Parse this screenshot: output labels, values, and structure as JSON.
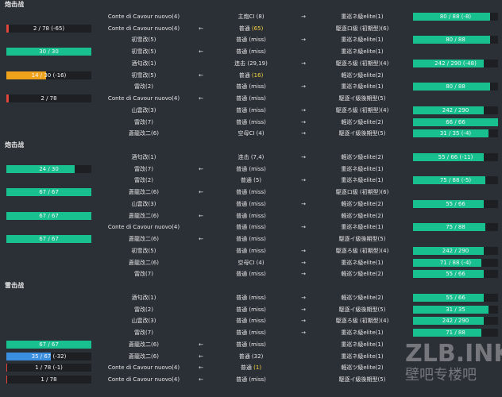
{
  "watermark": {
    "brand": "ZLB.INK",
    "sub": "壁吧专楼吧"
  },
  "sections": [
    {
      "title": "炮击战",
      "rows": [
        {
          "attacker": "Conte di Cavour nuovo(4)",
          "dir": "→",
          "attack": "主炮CI",
          "hit": "(8)",
          "target": "重巡ネ級elite(1)",
          "right": {
            "now": 80,
            "max": 88,
            "label": "80 / 88 (-8)",
            "color": "#17c08e"
          }
        },
        {
          "left": {
            "now": 2,
            "max": 78,
            "label": "2 / 78 (-65)",
            "color": "#e0453a"
          },
          "attacker": "Conte di Cavour nuovo(4)",
          "dir": "←",
          "attack": "普通",
          "hit": "(65)",
          "crit": true,
          "target": "駆逐ロ級 (初期型)(6)"
        },
        {
          "attacker": "初雪改(5)",
          "dir": "→",
          "attack": "普通",
          "hit": "(miss)",
          "target": "重巡ネ級elite(1)",
          "right": {
            "now": 80,
            "max": 88,
            "label": "80 / 88",
            "color": "#17c08e"
          }
        },
        {
          "left": {
            "now": 30,
            "max": 30,
            "label": "30 / 30",
            "color": "#17c08e"
          },
          "attacker": "初雪改(5)",
          "dir": "←",
          "attack": "普通",
          "hit": "(miss)",
          "target": "重巡ネ級elite(1)"
        },
        {
          "attacker": "酒匂改(1)",
          "dir": "→",
          "attack": "连击",
          "hit": "(29,19)",
          "target": "駆逐ろ級 (初期型)(4)",
          "right": {
            "now": 242,
            "max": 290,
            "label": "242 / 290 (-48)",
            "color": "#17c08e"
          }
        },
        {
          "left": {
            "now": 14,
            "max": 30,
            "label": "14 / 30 (-16)",
            "color": "#f0a21c"
          },
          "attacker": "初雪改(5)",
          "dir": "←",
          "attack": "普通",
          "hit": "(16)",
          "crit": true,
          "target": "軽巡ツ級elite(2)"
        },
        {
          "attacker": "雷改(2)",
          "dir": "→",
          "attack": "普通",
          "hit": "(miss)",
          "target": "重巡ネ級elite(1)",
          "right": {
            "now": 80,
            "max": 88,
            "label": "80 / 88",
            "color": "#17c08e"
          }
        },
        {
          "left": {
            "now": 2,
            "max": 78,
            "label": "2 / 78",
            "color": "#e0453a"
          },
          "attacker": "Conte di Cavour nuovo(4)",
          "dir": "←",
          "attack": "普通",
          "hit": "(miss)",
          "target": "駆逐イ級後期型(5)"
        },
        {
          "attacker": "山雲改(3)",
          "dir": "→",
          "attack": "普通",
          "hit": "(miss)",
          "target": "駆逐ろ級 (初期型)(4)",
          "right": {
            "now": 242,
            "max": 290,
            "label": "242 / 290",
            "color": "#17c08e"
          }
        },
        {
          "attacker": "雷改(7)",
          "dir": "→",
          "attack": "普通",
          "hit": "(miss)",
          "target": "軽巡ツ級elite(2)",
          "right": {
            "now": 66,
            "max": 66,
            "label": "66 / 66",
            "color": "#17c08e"
          }
        },
        {
          "attacker": "蒼龍改二(6)",
          "dir": "→",
          "attack": "空母CI",
          "hit": "(4)",
          "target": "駆逐イ級後期型(5)",
          "right": {
            "now": 31,
            "max": 35,
            "label": "31 / 35 (-4)",
            "color": "#17c08e"
          }
        }
      ]
    },
    {
      "title": "炮击战",
      "rows": [
        {
          "attacker": "酒匂改(1)",
          "dir": "→",
          "attack": "连击",
          "hit": "(7,4)",
          "target": "軽巡ツ級elite(2)",
          "right": {
            "now": 55,
            "max": 66,
            "label": "55 / 66 (-11)",
            "color": "#17c08e"
          }
        },
        {
          "left": {
            "now": 24,
            "max": 30,
            "label": "24 / 30",
            "color": "#17c08e"
          },
          "attacker": "雷改(7)",
          "dir": "←",
          "attack": "普通",
          "hit": "(miss)",
          "target": "重巡ネ級elite(1)"
        },
        {
          "attacker": "雷改(2)",
          "dir": "→",
          "attack": "普通",
          "hit": "(5)",
          "target": "重巡ネ級elite(1)",
          "right": {
            "now": 75,
            "max": 88,
            "label": "75 / 88 (-5)",
            "color": "#17c08e"
          }
        },
        {
          "left": {
            "now": 67,
            "max": 67,
            "label": "67 / 67",
            "color": "#17c08e"
          },
          "attacker": "蒼龍改二(6)",
          "dir": "←",
          "attack": "普通",
          "hit": "(miss)",
          "target": "駆逐ロ級 (初期型)(6)"
        },
        {
          "attacker": "山雲改(3)",
          "dir": "→",
          "attack": "普通",
          "hit": "(miss)",
          "target": "軽巡ツ級elite(2)",
          "right": {
            "now": 55,
            "max": 66,
            "label": "55 / 66",
            "color": "#17c08e"
          }
        },
        {
          "left": {
            "now": 67,
            "max": 67,
            "label": "67 / 67",
            "color": "#17c08e"
          },
          "attacker": "蒼龍改二(6)",
          "dir": "←",
          "attack": "普通",
          "hit": "(miss)",
          "target": "軽巡ツ級elite(2)"
        },
        {
          "attacker": "Conte di Cavour nuovo(4)",
          "dir": "→",
          "attack": "普通",
          "hit": "(miss)",
          "target": "重巡ネ級elite(1)",
          "right": {
            "now": 75,
            "max": 88,
            "label": "75 / 88",
            "color": "#17c08e"
          }
        },
        {
          "left": {
            "now": 67,
            "max": 67,
            "label": "67 / 67",
            "color": "#17c08e"
          },
          "attacker": "蒼龍改二(6)",
          "dir": "←",
          "attack": "普通",
          "hit": "(miss)",
          "target": "駆逐イ級後期型(5)"
        },
        {
          "attacker": "初雪改(5)",
          "dir": "→",
          "attack": "普通",
          "hit": "(miss)",
          "target": "駆逐ろ級 (初期型)(4)",
          "right": {
            "now": 242,
            "max": 290,
            "label": "242 / 290",
            "color": "#17c08e"
          }
        },
        {
          "attacker": "蒼龍改二(6)",
          "dir": "→",
          "attack": "空母CI",
          "hit": "(4)",
          "target": "重巡ネ級elite(1)",
          "right": {
            "now": 71,
            "max": 88,
            "label": "71 / 88 (-4)",
            "color": "#17c08e"
          }
        },
        {
          "attacker": "雷改(7)",
          "dir": "→",
          "attack": "普通",
          "hit": "(miss)",
          "target": "軽巡ツ級elite(2)",
          "right": {
            "now": 55,
            "max": 66,
            "label": "55 / 66",
            "color": "#17c08e"
          }
        }
      ]
    },
    {
      "title": "雷击战",
      "rows": [
        {
          "attacker": "酒匂改(1)",
          "dir": "→",
          "attack": "普通",
          "hit": "(miss)",
          "target": "軽巡ツ級elite(2)",
          "right": {
            "now": 55,
            "max": 66,
            "label": "55 / 66",
            "color": "#17c08e"
          }
        },
        {
          "attacker": "雷改(2)",
          "dir": "→",
          "attack": "普通",
          "hit": "(miss)",
          "target": "駆逐イ級後期型(5)",
          "right": {
            "now": 31,
            "max": 35,
            "label": "31 / 35",
            "color": "#17c08e"
          }
        },
        {
          "attacker": "山雲改(3)",
          "dir": "→",
          "attack": "普通",
          "hit": "(miss)",
          "target": "駆逐ろ級 (初期型)(4)",
          "right": {
            "now": 242,
            "max": 290,
            "label": "242 / 290",
            "color": "#17c08e"
          }
        },
        {
          "attacker": "雷改(7)",
          "dir": "→",
          "attack": "普通",
          "hit": "(miss)",
          "target": "重巡ネ級elite(1)",
          "right": {
            "now": 71,
            "max": 88,
            "label": "71 / 88",
            "color": "#17c08e"
          }
        },
        {
          "left": {
            "now": 67,
            "max": 67,
            "label": "67 / 67",
            "color": "#17c08e"
          },
          "attacker": "蒼龍改二(6)",
          "dir": "←",
          "attack": "普通",
          "hit": "(miss)",
          "target": "重巡ネ級elite(1)"
        },
        {
          "left": {
            "now": 35,
            "max": 67,
            "label": "35 / 67 (-32)",
            "color": "#3a8fe0"
          },
          "attacker": "蒼龍改二(6)",
          "dir": "←",
          "attack": "普通",
          "hit": "(32)",
          "target": "重巡ネ級elite(1)"
        },
        {
          "left": {
            "now": 1,
            "max": 78,
            "label": "1 / 78 (-1)",
            "color": "#e0453a"
          },
          "attacker": "Conte di Cavour nuovo(4)",
          "dir": "←",
          "attack": "普通",
          "hit": "(1)",
          "crit": true,
          "target": "軽巡ツ級elite(2)"
        },
        {
          "left": {
            "now": 1,
            "max": 78,
            "label": "1 / 78",
            "color": "#e0453a"
          },
          "attacker": "Conte di Cavour nuovo(4)",
          "dir": "←",
          "attack": "普通",
          "hit": "(miss)",
          "target": "駆逐イ級後期型(5)"
        }
      ]
    }
  ]
}
